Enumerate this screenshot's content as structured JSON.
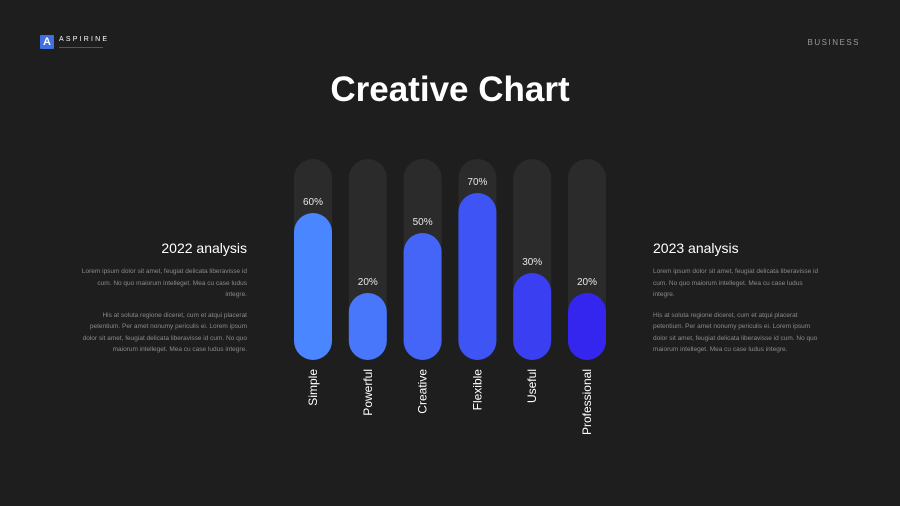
{
  "brand": {
    "name": "ASPIRINE",
    "mark": "A",
    "icon": "logo-a-icon",
    "accent": "#3f6fe0"
  },
  "header": {
    "section": "BUSINESS"
  },
  "title": "Creative Chart",
  "left_panel": {
    "heading": "2022 analysis",
    "paragraphs": [
      "Lorem ipsum dolor sit amet, feugiat delicata liberavisse id cum. No quo maiorum intelleget. Mea cu case ludus integre.",
      "His at soluta regione diceret, cum et atqui placerat petentium. Per amet nonumy periculis ei. Lorem ipsum dolor sit amet, feugiat delicata liberavisse id cum. No quo maiorum intelleget. Mea cu case ludus integre."
    ]
  },
  "right_panel": {
    "heading": "2023 analysis",
    "paragraphs": [
      "Lorem ipsum dolor sit amet, feugiat delicata liberavisse id cum. No quo maiorum intelleget. Mea cu case ludus integre.",
      "His at soluta regione diceret, cum et atqui placerat petentium. Per amet nonumy periculis ei. Lorem ipsum dolor sit amet, feugiat delicata liberavisse id cum. No quo maiorum intelleget. Mea cu case ludus integre."
    ]
  },
  "chart_data": {
    "type": "bar",
    "title": "",
    "xlabel": "",
    "ylabel": "",
    "ylim": [
      0,
      100
    ],
    "grid": false,
    "categories": [
      "Simple",
      "Powerful",
      "Creative",
      "Flexible",
      "Useful",
      "Professional"
    ],
    "values": [
      60,
      20,
      50,
      70,
      30,
      20
    ],
    "value_labels": [
      "60%",
      "20%",
      "50%",
      "70%",
      "30%",
      "20%"
    ],
    "colors": [
      "#4a86ff",
      "#4877fb",
      "#4465f7",
      "#3f54f5",
      "#3a40f2",
      "#3426ee"
    ],
    "track_color": "#2b2b2b"
  }
}
